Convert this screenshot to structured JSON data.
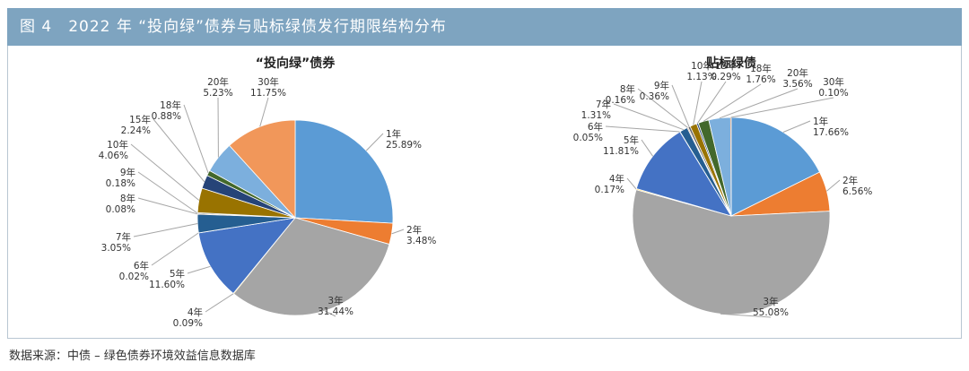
{
  "header": {
    "title": "图 4　2022 年 “投向绿”债券与贴标绿债发行期限结构分布"
  },
  "source": "数据来源：中债 – 绿色债券环境效益信息数据库",
  "colors": {
    "1年": "#5b9bd5",
    "2年": "#ed7d31",
    "3年": "#a5a5a5",
    "4年": "#ffc000",
    "5年": "#4472c4",
    "6年": "#70ad47",
    "7年": "#255e91",
    "8年": "#9e480e",
    "9年": "#636363",
    "10年": "#997300",
    "15年": "#264478",
    "18年": "#43682b",
    "20年": "#7cafdd",
    "30年": "#f1975a"
  },
  "chart_data": [
    {
      "type": "pie",
      "title": "“投向绿”债券",
      "categories": [
        "1年",
        "2年",
        "3年",
        "4年",
        "5年",
        "6年",
        "7年",
        "8年",
        "9年",
        "10年",
        "15年",
        "18年",
        "20年",
        "30年"
      ],
      "labels": [
        "25.89%",
        "3.48%",
        "31.44%",
        "0.09%",
        "11.60%",
        "0.02%",
        "3.05%",
        "0.08%",
        "0.18%",
        "4.06%",
        "2.24%",
        "0.88%",
        "5.23%",
        "11.75%"
      ],
      "values": [
        25.89,
        3.48,
        31.44,
        0.09,
        11.6,
        0.02,
        3.05,
        0.08,
        0.18,
        4.06,
        2.24,
        0.88,
        5.23,
        11.75
      ]
    },
    {
      "type": "pie",
      "title": "贴标绿债",
      "categories": [
        "1年",
        "2年",
        "3年",
        "4年",
        "5年",
        "6年",
        "7年",
        "8年",
        "9年",
        "10年",
        "15年",
        "18年",
        "20年",
        "30年"
      ],
      "labels": [
        "17.66%",
        "6.56%",
        "55.08%",
        "0.17%",
        "11.81%",
        "0.05%",
        "1.31%",
        "0.16%",
        "0.36%",
        "1.13%",
        "0.29%",
        "1.76%",
        "3.56%",
        "0.10%"
      ],
      "values": [
        17.66,
        6.56,
        55.08,
        0.17,
        11.81,
        0.05,
        1.31,
        0.16,
        0.36,
        1.13,
        0.29,
        1.76,
        3.56,
        0.1
      ]
    }
  ]
}
